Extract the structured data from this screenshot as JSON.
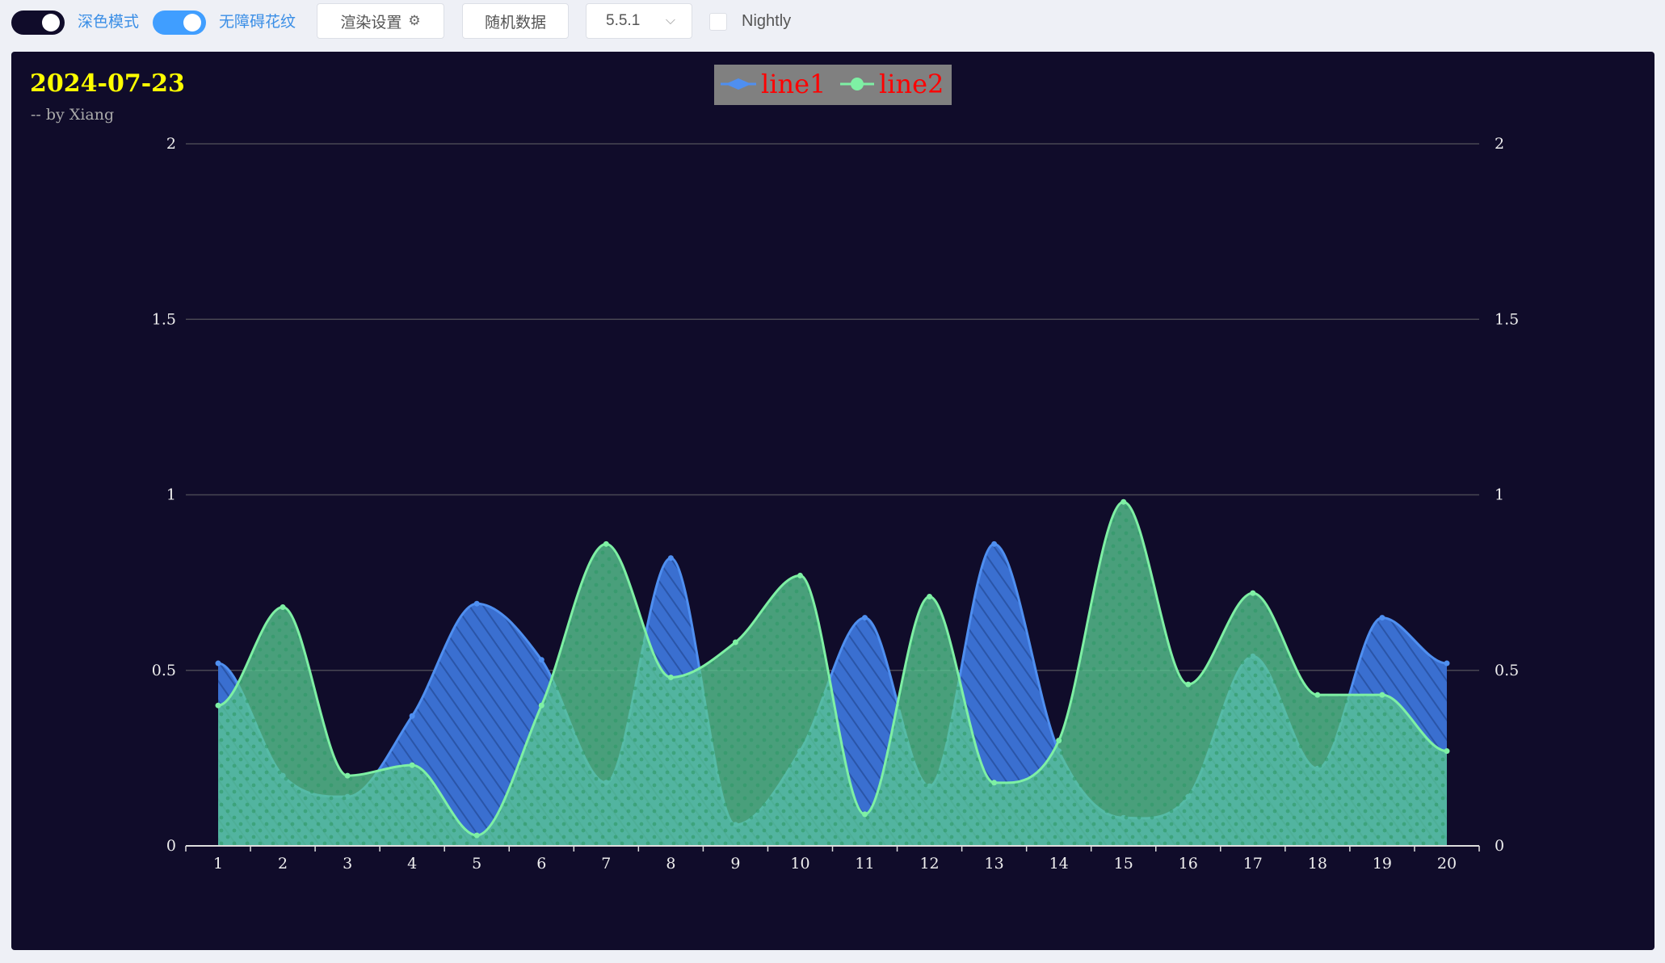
{
  "toolbar": {
    "dark_mode_label": "深色模式",
    "decal_label": "无障碍花纹",
    "render_settings_label": "渲染设置",
    "settings_icon": "gear-icon",
    "random_data_label": "随机数据",
    "version_value": "5.5.1",
    "version_icon": "chevron-down-icon",
    "nightly_label": "Nightly"
  },
  "colors": {
    "background": "#100c2a",
    "line1": "#4f8ff0",
    "line2": "#7ef0a4",
    "title": "#ffff00",
    "legend_text": "#ff0000",
    "legend_bg": "#808080"
  },
  "chart_data": {
    "type": "area",
    "title": "2024-07-23",
    "subtitle": "-- by Xiang",
    "x": [
      "1",
      "2",
      "3",
      "4",
      "5",
      "6",
      "7",
      "8",
      "9",
      "10",
      "11",
      "12",
      "13",
      "14",
      "15",
      "16",
      "17",
      "18",
      "19",
      "20"
    ],
    "series": [
      {
        "name": "line1",
        "values": [
          0.52,
          0.2,
          0.14,
          0.37,
          0.69,
          0.53,
          0.18,
          0.82,
          0.06,
          0.27,
          0.65,
          0.17,
          0.86,
          0.27,
          0.08,
          0.14,
          0.54,
          0.22,
          0.65,
          0.52
        ]
      },
      {
        "name": "line2",
        "values": [
          0.4,
          0.68,
          0.2,
          0.23,
          0.03,
          0.4,
          0.86,
          0.48,
          0.58,
          0.77,
          0.09,
          0.71,
          0.18,
          0.3,
          0.98,
          0.46,
          0.72,
          0.43,
          0.43,
          0.27
        ]
      }
    ],
    "ylim": [
      0,
      2
    ],
    "yticks": [
      "0",
      "0.5",
      "1",
      "1.5",
      "2"
    ],
    "grid": true,
    "legend": "top-center",
    "dual_y_axis": true
  }
}
